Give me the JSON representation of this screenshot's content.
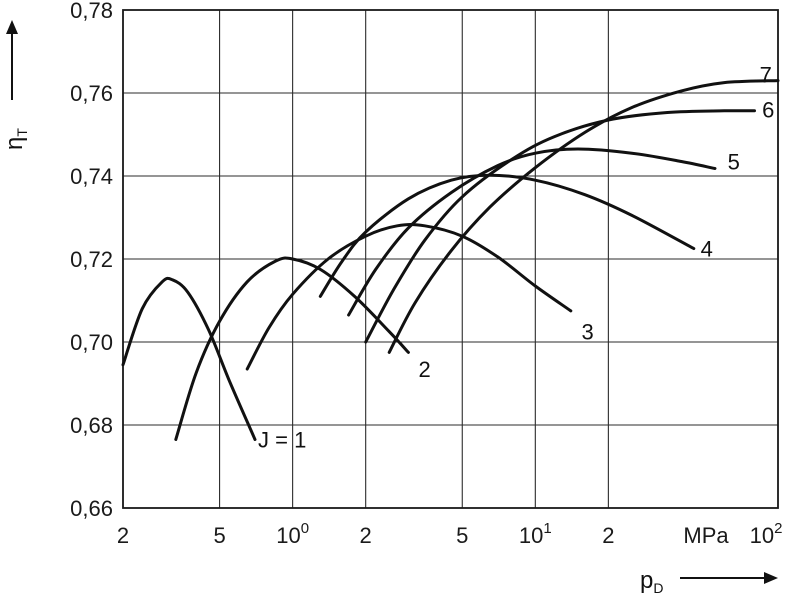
{
  "chart_data": {
    "type": "line",
    "title": "",
    "xlabel": {
      "main": "p",
      "sub": "D"
    },
    "ylabel": {
      "main": "η",
      "sub": "T"
    },
    "x_unit": "MPa",
    "x_scale": "log",
    "xlim": [
      0.2,
      100
    ],
    "ylim": [
      0.66,
      0.78
    ],
    "grid": true,
    "x_ticks": [
      {
        "value": 0.2,
        "label": "2"
      },
      {
        "value": 0.5,
        "label": "5"
      },
      {
        "value": 1,
        "label": "10",
        "sup": "0"
      },
      {
        "value": 2,
        "label": "2"
      },
      {
        "value": 5,
        "label": "5"
      },
      {
        "value": 10,
        "label": "10",
        "sup": "1"
      },
      {
        "value": 20,
        "label": "2"
      },
      {
        "value": 100,
        "label": "10",
        "sup": "2"
      }
    ],
    "y_ticks": [
      {
        "value": 0.66,
        "label": "0,66"
      },
      {
        "value": 0.68,
        "label": "0,68"
      },
      {
        "value": 0.7,
        "label": "0,70"
      },
      {
        "value": 0.72,
        "label": "0,72"
      },
      {
        "value": 0.74,
        "label": "0,74"
      },
      {
        "value": 0.76,
        "label": "0,76"
      },
      {
        "value": 0.78,
        "label": "0,78"
      }
    ],
    "series": [
      {
        "name": "J = 1",
        "label_at": [
          0.72,
          0.6765
        ],
        "points": [
          [
            0.2,
            0.6945
          ],
          [
            0.24,
            0.708
          ],
          [
            0.29,
            0.7145
          ],
          [
            0.32,
            0.715
          ],
          [
            0.37,
            0.712
          ],
          [
            0.45,
            0.703
          ],
          [
            0.55,
            0.6905
          ],
          [
            0.7,
            0.6765
          ]
        ]
      },
      {
        "name": "2",
        "label_at": [
          3.3,
          0.6935
        ],
        "points": [
          [
            0.33,
            0.6765
          ],
          [
            0.4,
            0.6925
          ],
          [
            0.5,
            0.705
          ],
          [
            0.65,
            0.7145
          ],
          [
            0.85,
            0.7195
          ],
          [
            1.0,
            0.72
          ],
          [
            1.3,
            0.7175
          ],
          [
            1.8,
            0.711
          ],
          [
            2.5,
            0.7025
          ],
          [
            3.0,
            0.6975
          ]
        ]
      },
      {
        "name": "3",
        "label_at": [
          15.5,
          0.7025
        ],
        "points": [
          [
            0.65,
            0.6935
          ],
          [
            0.8,
            0.7035
          ],
          [
            1.0,
            0.7115
          ],
          [
            1.4,
            0.72
          ],
          [
            2.0,
            0.7255
          ],
          [
            2.7,
            0.728
          ],
          [
            3.5,
            0.728
          ],
          [
            5.0,
            0.7255
          ],
          [
            7.0,
            0.7205
          ],
          [
            10,
            0.7135
          ],
          [
            14,
            0.7075
          ]
        ]
      },
      {
        "name": "4",
        "label_at": [
          48,
          0.7225
        ],
        "points": [
          [
            1.3,
            0.711
          ],
          [
            1.6,
            0.7195
          ],
          [
            2.0,
            0.7265
          ],
          [
            3.0,
            0.7345
          ],
          [
            4.5,
            0.739
          ],
          [
            6.5,
            0.7402
          ],
          [
            10,
            0.739
          ],
          [
            16,
            0.7355
          ],
          [
            25,
            0.7305
          ],
          [
            45,
            0.7225
          ]
        ]
      },
      {
        "name": "5",
        "label_at": [
          62,
          0.7435
        ],
        "points": [
          [
            1.7,
            0.7065
          ],
          [
            2.2,
            0.7175
          ],
          [
            3.0,
            0.7275
          ],
          [
            4.5,
            0.736
          ],
          [
            7,
            0.7425
          ],
          [
            10,
            0.7455
          ],
          [
            15,
            0.7465
          ],
          [
            25,
            0.7455
          ],
          [
            40,
            0.7435
          ],
          [
            55,
            0.7418
          ]
        ]
      },
      {
        "name": "6",
        "label_at": [
          86,
          0.756
        ],
        "points": [
          [
            2.0,
            0.7
          ],
          [
            2.6,
            0.7125
          ],
          [
            3.5,
            0.7245
          ],
          [
            5,
            0.735
          ],
          [
            8,
            0.744
          ],
          [
            12,
            0.7495
          ],
          [
            20,
            0.7535
          ],
          [
            35,
            0.7553
          ],
          [
            60,
            0.7557
          ],
          [
            80,
            0.7557
          ]
        ]
      },
      {
        "name": "7",
        "label_at": [
          84,
          0.7645
        ],
        "points": [
          [
            2.5,
            0.6975
          ],
          [
            3.2,
            0.7095
          ],
          [
            4.5,
            0.722
          ],
          [
            6.5,
            0.7325
          ],
          [
            10,
            0.742
          ],
          [
            16,
            0.7505
          ],
          [
            25,
            0.7565
          ],
          [
            40,
            0.7605
          ],
          [
            60,
            0.7625
          ],
          [
            100,
            0.763
          ]
        ]
      }
    ]
  }
}
